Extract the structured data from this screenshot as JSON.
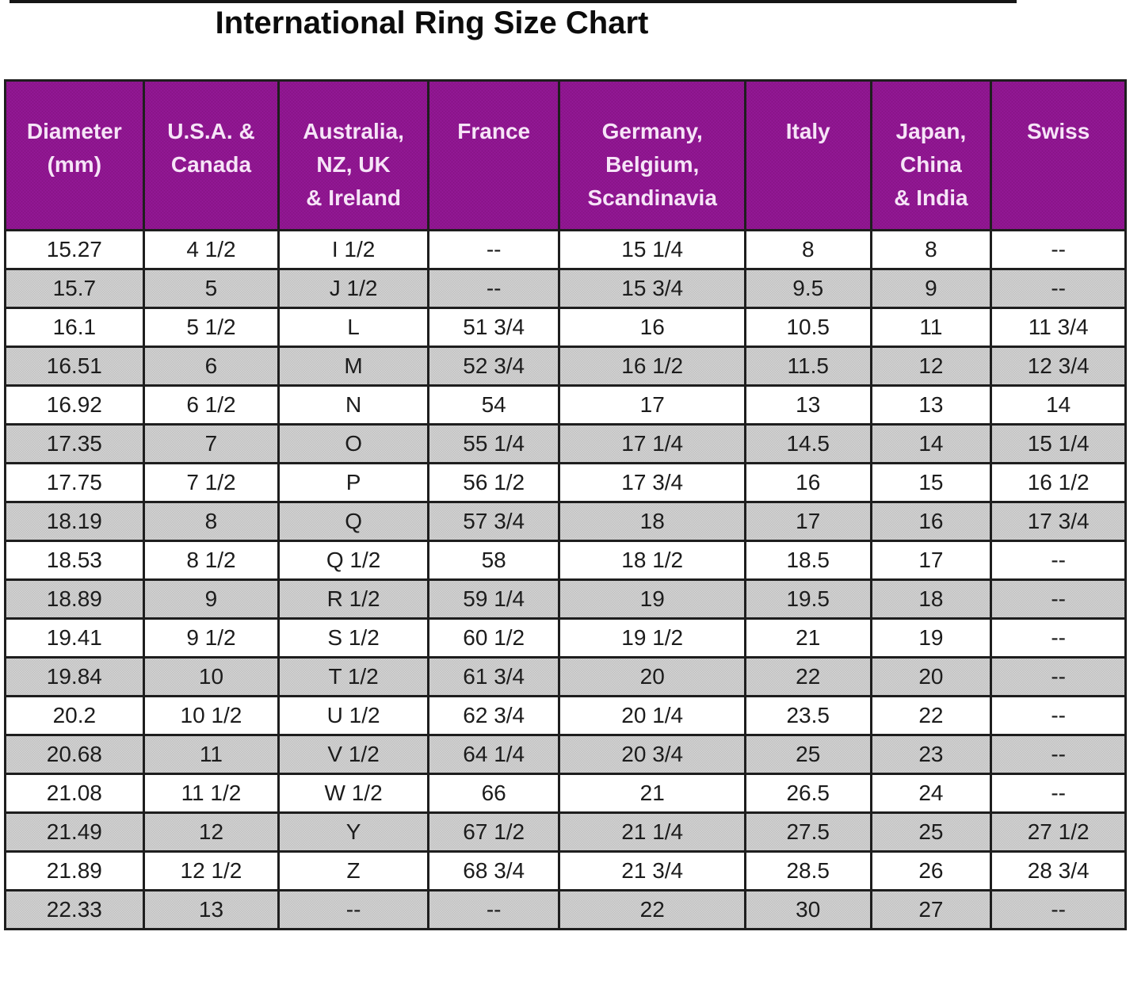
{
  "title": "International Ring Size Chart",
  "colors": {
    "header_bg": "#8E1590",
    "header_text": "#F6E4F7",
    "row_bg": "#FFFFFF",
    "row_alt_bg": "#C9C9C9",
    "border": "#1E1E1E"
  },
  "table": {
    "columns": [
      "Diameter\n(mm)",
      "U.S.A. &\nCanada",
      "Australia,\nNZ, UK\n& Ireland",
      "France",
      "Germany,\nBelgium,\nScandinavia",
      "Italy",
      "Japan,\nChina\n& India",
      "Swiss"
    ],
    "rows": [
      [
        "15.27",
        "4 1/2",
        "I 1/2",
        "--",
        "15 1/4",
        "8",
        "8",
        "--"
      ],
      [
        "15.7",
        "5",
        "J 1/2",
        "--",
        "15 3/4",
        "9.5",
        "9",
        "--"
      ],
      [
        "16.1",
        "5 1/2",
        "L",
        "51 3/4",
        "16",
        "10.5",
        "11",
        "11 3/4"
      ],
      [
        "16.51",
        "6",
        "M",
        "52 3/4",
        "16 1/2",
        "11.5",
        "12",
        "12 3/4"
      ],
      [
        "16.92",
        "6 1/2",
        "N",
        "54",
        "17",
        "13",
        "13",
        "14"
      ],
      [
        "17.35",
        "7",
        "O",
        "55 1/4",
        "17 1/4",
        "14.5",
        "14",
        "15 1/4"
      ],
      [
        "17.75",
        "7 1/2",
        "P",
        "56 1/2",
        "17 3/4",
        "16",
        "15",
        "16 1/2"
      ],
      [
        "18.19",
        "8",
        "Q",
        "57 3/4",
        "18",
        "17",
        "16",
        "17 3/4"
      ],
      [
        "18.53",
        "8 1/2",
        "Q 1/2",
        "58",
        "18 1/2",
        "18.5",
        "17",
        "--"
      ],
      [
        "18.89",
        "9",
        "R 1/2",
        "59 1/4",
        "19",
        "19.5",
        "18",
        "--"
      ],
      [
        "19.41",
        "9 1/2",
        "S 1/2",
        "60 1/2",
        "19 1/2",
        "21",
        "19",
        "--"
      ],
      [
        "19.84",
        "10",
        "T 1/2",
        "61 3/4",
        "20",
        "22",
        "20",
        "--"
      ],
      [
        "20.2",
        "10 1/2",
        "U 1/2",
        "62 3/4",
        "20 1/4",
        "23.5",
        "22",
        "--"
      ],
      [
        "20.68",
        "11",
        "V 1/2",
        "64 1/4",
        "20 3/4",
        "25",
        "23",
        "--"
      ],
      [
        "21.08",
        "11 1/2",
        "W 1/2",
        "66",
        "21",
        "26.5",
        "24",
        "--"
      ],
      [
        "21.49",
        "12",
        "Y",
        "67 1/2",
        "21 1/4",
        "27.5",
        "25",
        "27 1/2"
      ],
      [
        "21.89",
        "12 1/2",
        "Z",
        "68 3/4",
        "21 3/4",
        "28.5",
        "26",
        "28 3/4"
      ],
      [
        "22.33",
        "13",
        "--",
        "--",
        "22",
        "30",
        "27",
        "--"
      ]
    ]
  }
}
